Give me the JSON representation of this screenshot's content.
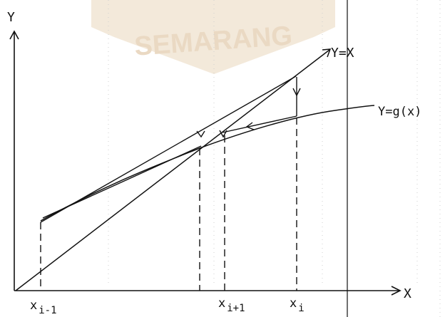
{
  "watermark": {
    "text": "SEMARANG",
    "colors": {
      "banner": "#f2e6d4",
      "text": "#e7d3b8"
    }
  },
  "axes": {
    "y_label": "Y",
    "x_label": "X"
  },
  "curves": {
    "identity_label": "Y=X",
    "g_label": "Y=g(x)"
  },
  "ticks": {
    "prev": {
      "base": "x",
      "sub": "i-1"
    },
    "next": {
      "base": "x",
      "sub": "i+1"
    },
    "cur": {
      "base": "x",
      "sub": "i"
    }
  },
  "colors": {
    "ink": "#111111",
    "paper": "#ffffff",
    "scan_lines": "#cfcfcf"
  }
}
